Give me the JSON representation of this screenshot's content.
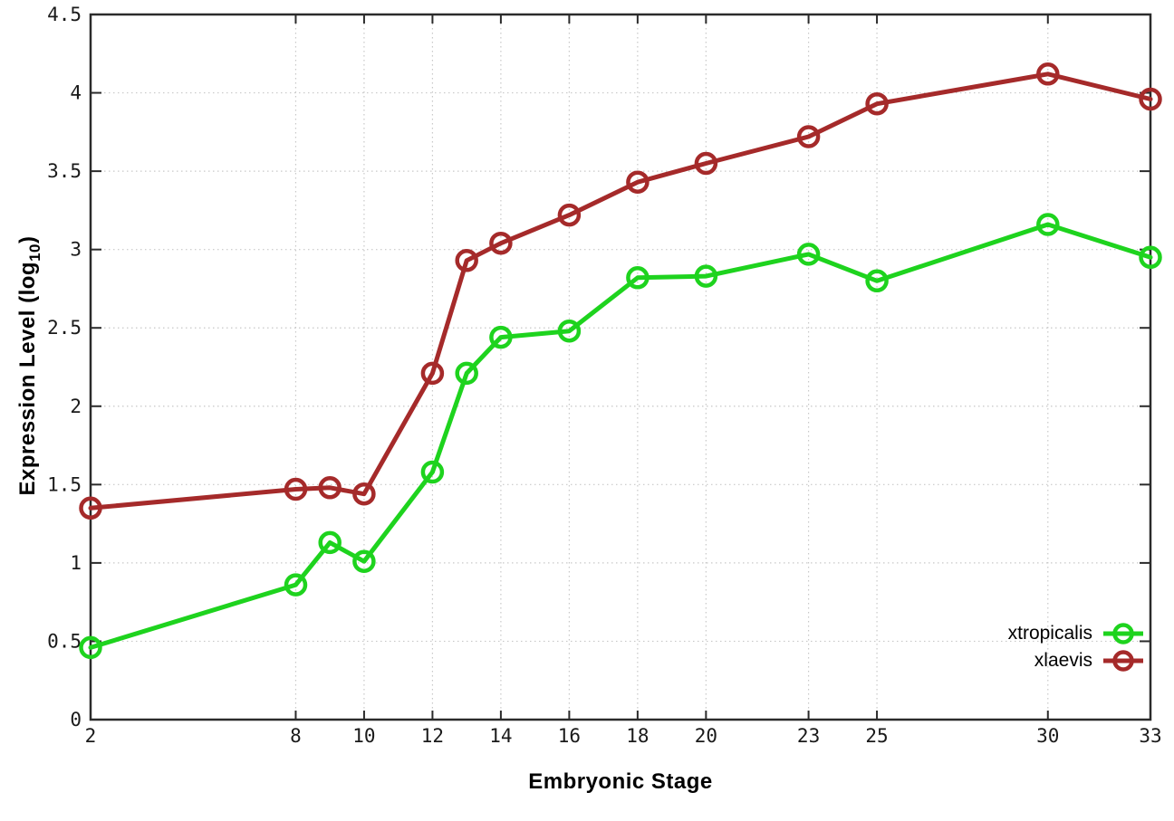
{
  "chart_data": {
    "type": "line",
    "title": "",
    "xlabel": "Embryonic Stage",
    "ylabel": "Expression Level (log10)",
    "ylabel_parts": {
      "pre": "Expression Level (log",
      "sub": "10",
      "post": ")"
    },
    "xlim": [
      2,
      33
    ],
    "ylim": [
      0,
      4.5
    ],
    "x_ticks": [
      2,
      8,
      10,
      12,
      14,
      16,
      18,
      20,
      23,
      25,
      30,
      33
    ],
    "y_ticks": [
      0,
      0.5,
      1,
      1.5,
      2,
      2.5,
      3,
      3.5,
      4,
      4.5
    ],
    "grid": true,
    "grid_style": "dotted",
    "legend_position": "bottom-right",
    "x": [
      2,
      8,
      9,
      10,
      12,
      13,
      14,
      16,
      18,
      20,
      23,
      25,
      30,
      33
    ],
    "series": [
      {
        "name": "xtropicalis",
        "color": "#1ed31e",
        "marker": "open-circle",
        "values": [
          0.46,
          0.86,
          1.13,
          1.01,
          1.58,
          2.21,
          2.44,
          2.48,
          2.82,
          2.83,
          2.97,
          2.8,
          3.16,
          2.95
        ]
      },
      {
        "name": "xlaevis",
        "color": "#a52a2a",
        "marker": "open-circle",
        "values": [
          1.35,
          1.47,
          1.48,
          1.44,
          2.21,
          2.93,
          3.04,
          3.22,
          3.43,
          3.55,
          3.72,
          3.93,
          4.12,
          3.96
        ]
      }
    ]
  },
  "style": {
    "axis_color": "#2b2b2b",
    "grid_color": "#c8c8c8",
    "tick_label_color": "#1a1a1a",
    "background": "#ffffff"
  }
}
